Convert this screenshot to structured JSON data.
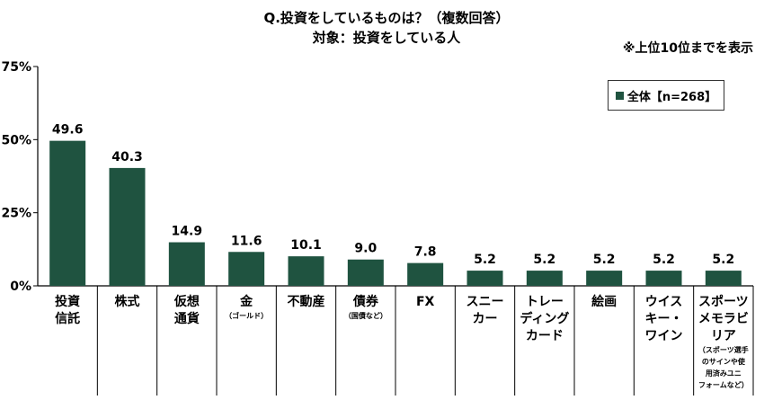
{
  "chart_data": {
    "type": "bar",
    "title": "Q.投資をしているものは？（複数回答）",
    "subtitle": "対象：投資をしている人",
    "note": "※上位10位までを表示",
    "legend": "全体【n=268】",
    "ylim": [
      0,
      75
    ],
    "yticks": [
      "0%",
      "25%",
      "50%",
      "75%"
    ],
    "grid": false,
    "legend_position": "top-right",
    "color": "#1f5340",
    "categories": [
      {
        "label": [
          "投資",
          "信託"
        ],
        "sub": []
      },
      {
        "label": [
          "株式"
        ],
        "sub": []
      },
      {
        "label": [
          "仮想",
          "通貨"
        ],
        "sub": []
      },
      {
        "label": [
          "金"
        ],
        "sub": [
          "（ゴールド）"
        ]
      },
      {
        "label": [
          "不動産"
        ],
        "sub": []
      },
      {
        "label": [
          "債券"
        ],
        "sub": [
          "（国債など）"
        ]
      },
      {
        "label": [
          "FX"
        ],
        "sub": []
      },
      {
        "label": [
          "スニー",
          "カー"
        ],
        "sub": []
      },
      {
        "label": [
          "トレー",
          "ディング",
          "カード"
        ],
        "sub": []
      },
      {
        "label": [
          "絵画"
        ],
        "sub": []
      },
      {
        "label": [
          "ウイス",
          "キー・",
          "ワイン"
        ],
        "sub": []
      },
      {
        "label": [
          "スポーツ",
          "メモラビ",
          "リア"
        ],
        "sub": [
          "（スポーツ選手",
          "のサインや使",
          "用済みユニ",
          "フォームなど）"
        ]
      }
    ],
    "values": [
      49.6,
      40.3,
      14.9,
      11.6,
      10.1,
      9.0,
      7.8,
      5.2,
      5.2,
      5.2,
      5.2,
      5.2
    ],
    "value_labels": [
      "49.6",
      "40.3",
      "14.9",
      "11.6",
      "10.1",
      "9.0",
      "7.8",
      "5.2",
      "5.2",
      "5.2",
      "5.2",
      "5.2"
    ]
  }
}
